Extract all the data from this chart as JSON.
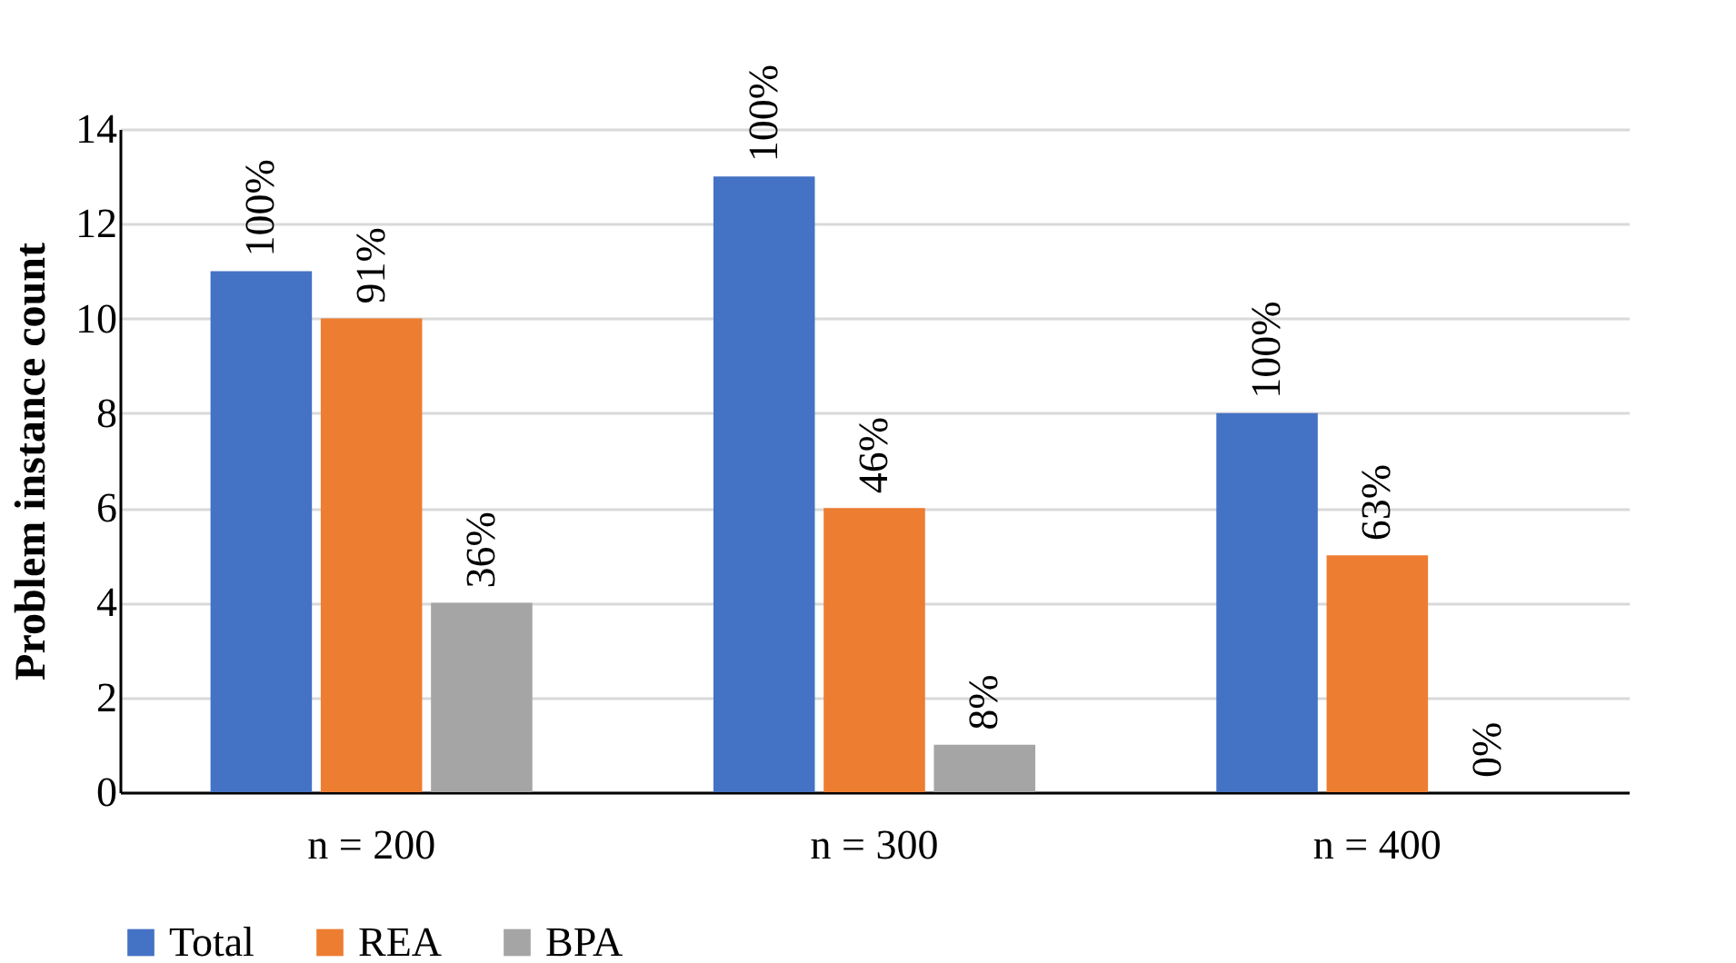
{
  "chart_data": {
    "type": "bar",
    "ylabel": "Problem instance count",
    "categories": [
      "n = 200",
      "n = 300",
      "n = 400"
    ],
    "series": [
      {
        "name": "Total",
        "color": "#4472c4",
        "values": [
          11,
          13,
          8
        ]
      },
      {
        "name": "REA",
        "color": "#ed7d31",
        "values": [
          10,
          6,
          5
        ]
      },
      {
        "name": "BPA",
        "color": "#a5a5a5",
        "values": [
          4,
          1,
          0
        ]
      }
    ],
    "annotations": [
      "100%",
      "91%",
      "36%",
      "100%",
      "46%",
      "8%",
      "100%",
      "63%",
      "0%"
    ],
    "ylim": [
      0,
      14
    ],
    "yticks": [
      0,
      2,
      4,
      6,
      8,
      10,
      12,
      14
    ],
    "grid": "y",
    "legend": "bottom"
  }
}
